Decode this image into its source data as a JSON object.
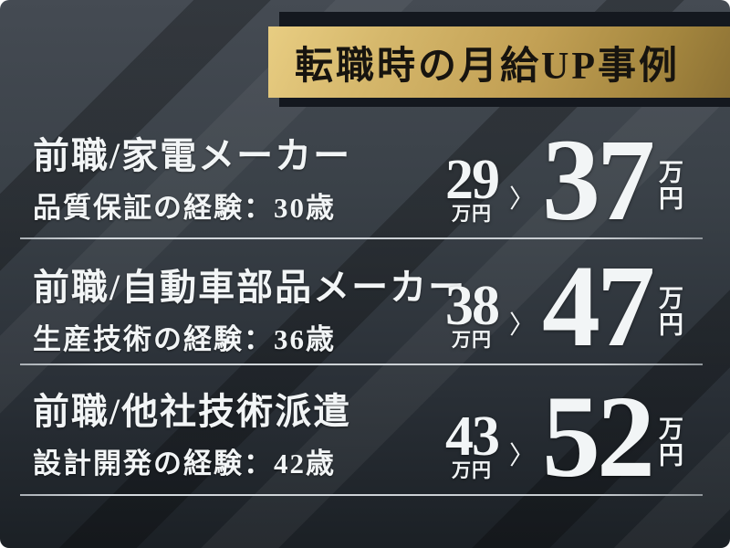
{
  "banner": {
    "title": "転職時の月給UP事例"
  },
  "arrow_glyph": "〉",
  "cases": [
    {
      "heading": "前職/家電メーカー",
      "detail": "品質保証の経験：30歳",
      "before_value": "29",
      "before_unit": "万円",
      "after_value": "37",
      "after_unit_top": "万",
      "after_unit_bottom": "円"
    },
    {
      "heading": "前職/自動車部品メーカー",
      "detail": "生産技術の経験：36歳",
      "before_value": "38",
      "before_unit": "万円",
      "after_value": "47",
      "after_unit_top": "万",
      "after_unit_bottom": "円"
    },
    {
      "heading": "前職/他社技術派遣",
      "detail": "設計開発の経験：42歳",
      "before_value": "43",
      "before_unit": "万円",
      "after_value": "52",
      "after_unit_top": "万",
      "after_unit_bottom": "円"
    }
  ],
  "colors": {
    "gold_light": "#e8cd82",
    "gold_mid": "#c3a155",
    "gold_dark": "#8c7134",
    "banner_text": "#17140f",
    "banner_shadow": "#14181f",
    "bg_top": "#454b53",
    "bg_bottom": "#1b2025",
    "text_white": "#f2f5f6",
    "divider": "#d5dade"
  }
}
